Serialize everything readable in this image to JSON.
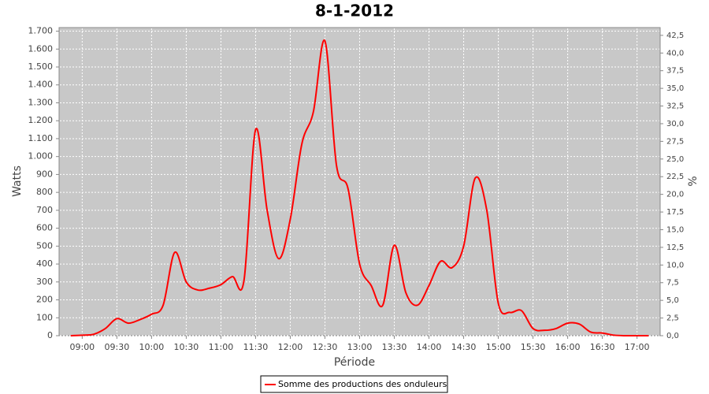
{
  "chart_data": {
    "type": "line",
    "title": "8-1-2012",
    "x_label": "Période",
    "y_label": "Watts",
    "y2_label": "%",
    "x": [
      "08:50",
      "09:00",
      "09:10",
      "09:20",
      "09:30",
      "09:40",
      "09:50",
      "10:00",
      "10:10",
      "10:20",
      "10:30",
      "10:40",
      "10:50",
      "11:00",
      "11:10",
      "11:20",
      "11:30",
      "11:40",
      "11:50",
      "12:00",
      "12:10",
      "12:20",
      "12:30",
      "12:40",
      "12:50",
      "13:00",
      "13:10",
      "13:20",
      "13:30",
      "13:40",
      "13:50",
      "14:00",
      "14:10",
      "14:20",
      "14:30",
      "14:40",
      "14:50",
      "15:00",
      "15:10",
      "15:20",
      "15:30",
      "15:40",
      "15:50",
      "16:00",
      "16:10",
      "16:20",
      "16:30",
      "16:40",
      "16:50",
      "17:00",
      "17:10"
    ],
    "series": [
      {
        "name": "Somme des productions des onduleurs",
        "color": "#ff0000",
        "values": [
          0,
          3,
          8,
          40,
          95,
          70,
          90,
          120,
          170,
          465,
          300,
          255,
          265,
          285,
          330,
          310,
          1150,
          700,
          430,
          650,
          1070,
          1250,
          1645,
          950,
          820,
          400,
          280,
          170,
          505,
          240,
          170,
          280,
          415,
          380,
          500,
          880,
          700,
          180,
          130,
          140,
          40,
          30,
          40,
          70,
          65,
          20,
          15,
          3,
          0,
          0,
          0
        ]
      }
    ],
    "xlim": [
      "08:40",
      "17:20"
    ],
    "xticks": [
      "09:00",
      "09:30",
      "10:00",
      "10:30",
      "11:00",
      "11:30",
      "12:00",
      "12:30",
      "13:00",
      "13:30",
      "14:00",
      "14:30",
      "15:00",
      "15:30",
      "16:00",
      "16:30",
      "17:00"
    ],
    "ylim": [
      0,
      1720
    ],
    "yticks": [
      0,
      100,
      200,
      300,
      400,
      500,
      600,
      700,
      800,
      900,
      {
        "value": 1000,
        "label": "1.000"
      },
      {
        "value": 1100,
        "label": "1.100"
      },
      {
        "value": 1200,
        "label": "1.200"
      },
      {
        "value": 1300,
        "label": "1.300"
      },
      {
        "value": 1400,
        "label": "1.400"
      },
      {
        "value": 1500,
        "label": "1.500"
      },
      {
        "value": 1600,
        "label": "1.600"
      },
      {
        "value": 1700,
        "label": "1.700"
      }
    ],
    "y2lim": [
      0,
      43.6
    ],
    "y2ticks": [
      {
        "value": 0,
        "label": "0,0"
      },
      {
        "value": 2.5,
        "label": "2,5"
      },
      {
        "value": 5,
        "label": "5,0"
      },
      {
        "value": 7.5,
        "label": "7,5"
      },
      {
        "value": 10,
        "label": "10,0"
      },
      {
        "value": 12.5,
        "label": "12,5"
      },
      {
        "value": 15,
        "label": "15,0"
      },
      {
        "value": 17.5,
        "label": "17,5"
      },
      {
        "value": 20,
        "label": "20,0"
      },
      {
        "value": 22.5,
        "label": "22,5"
      },
      {
        "value": 25,
        "label": "25,0"
      },
      {
        "value": 27.5,
        "label": "27,5"
      },
      {
        "value": 30,
        "label": "30,0"
      },
      {
        "value": 32.5,
        "label": "32,5"
      },
      {
        "value": 35,
        "label": "35,0"
      },
      {
        "value": 37.5,
        "label": "37,5"
      },
      {
        "value": 40,
        "label": "40,0"
      },
      {
        "value": 42.5,
        "label": "42,5"
      }
    ],
    "grid": true,
    "legend": "bottom"
  }
}
